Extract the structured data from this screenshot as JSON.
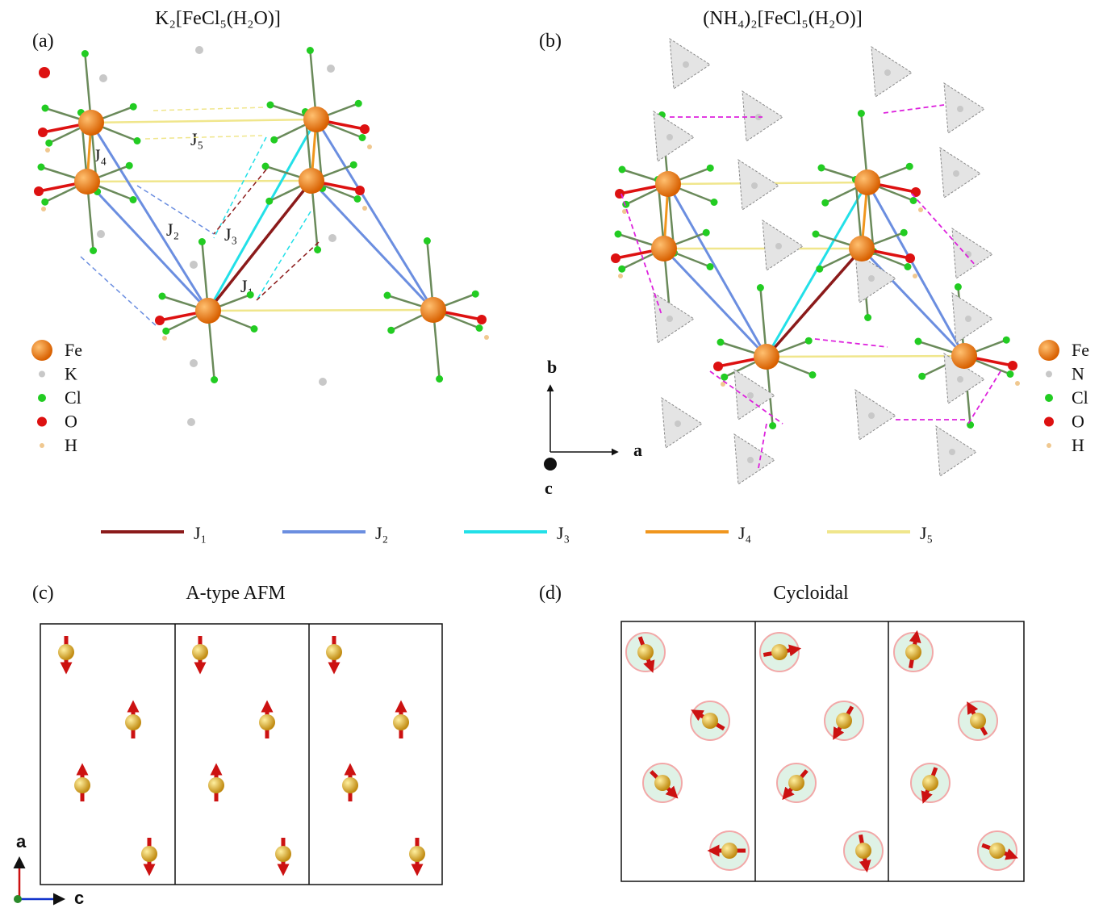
{
  "panel_a": {
    "label": "(a)",
    "title": "K₂[FeCl₅(H₂O)]",
    "j_labels": [
      "J₁",
      "J₂",
      "J₃",
      "J₄",
      "J₅"
    ],
    "legend": [
      {
        "name": "Fe",
        "color": "#e87810"
      },
      {
        "name": "K",
        "color": "#c8c8c8"
      },
      {
        "name": "Cl",
        "color": "#22cc22"
      },
      {
        "name": "O",
        "color": "#dd1111"
      },
      {
        "name": "H",
        "color": "#f0c890"
      }
    ]
  },
  "panel_b": {
    "label": "(b)",
    "title": "(NH₄)₂[FeCl₅(H₂O)]",
    "axes": [
      "b",
      "a",
      "c"
    ],
    "legend": [
      {
        "name": "Fe",
        "color": "#e87810"
      },
      {
        "name": "N",
        "color": "#c8c8c8"
      },
      {
        "name": "Cl",
        "color": "#22cc22"
      },
      {
        "name": "O",
        "color": "#dd1111"
      },
      {
        "name": "H",
        "color": "#f0c890"
      }
    ]
  },
  "bond_legend": [
    {
      "name": "J₁",
      "color": "#8b1a1a"
    },
    {
      "name": "J₂",
      "color": "#6b8ee0"
    },
    {
      "name": "J₃",
      "color": "#22e0e8"
    },
    {
      "name": "J₄",
      "color": "#f0961e"
    },
    {
      "name": "J₅",
      "color": "#f0e68c"
    }
  ],
  "panel_c": {
    "label": "(c)",
    "title": "A-type AFM",
    "axes": [
      "a",
      "c"
    ]
  },
  "panel_d": {
    "label": "(d)",
    "title": "Cycloidal"
  }
}
